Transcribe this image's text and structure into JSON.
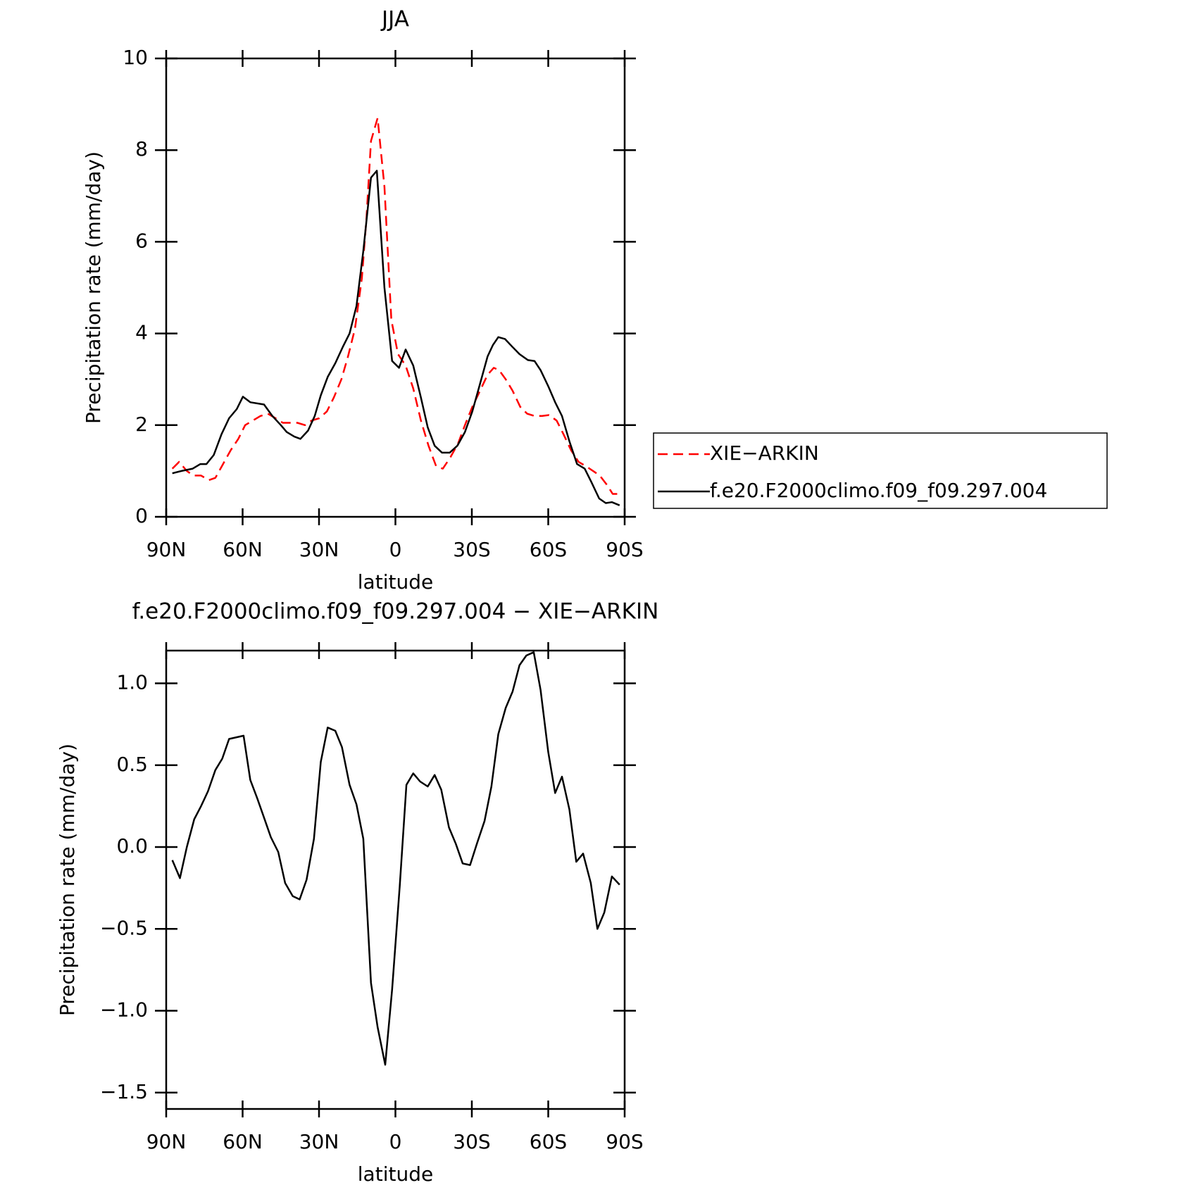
{
  "chart_data": [
    {
      "type": "line",
      "title": "JJA",
      "xlabel": "latitude",
      "ylabel": "Precipitation rate (mm/day)",
      "xlim": [
        90,
        -90
      ],
      "ylim": [
        0,
        10
      ],
      "xticks": [
        {
          "value": 90,
          "label": "90N"
        },
        {
          "value": 60,
          "label": "60N"
        },
        {
          "value": 30,
          "label": "30N"
        },
        0,
        {
          "value": -30,
          "label": "30S"
        },
        {
          "value": -60,
          "label": "60S"
        },
        {
          "value": -90,
          "label": "90S"
        }
      ],
      "yticks": [
        0,
        2,
        4,
        6,
        8,
        10
      ],
      "legend": "right",
      "series": [
        {
          "name": "XIE−ARKIN",
          "color": "#ff0000",
          "dashed": true,
          "x": [
            87.6,
            84.9,
            81.9,
            79.3,
            76.3,
            73.3,
            70.7,
            67.7,
            64.7,
            61.7,
            59,
            56,
            53,
            50.1,
            47.1,
            44.2,
            41.5,
            38.5,
            35.5,
            32.9,
            29.9,
            26.9,
            24.2,
            21.2,
            18.6,
            15.9,
            13.2,
            11.4,
            9.6,
            7,
            4.3,
            1.6,
            -1,
            -4,
            -7,
            -10,
            -13,
            -16,
            -18.6,
            -21.6,
            -24.6,
            -27.3,
            -30.2,
            -33.2,
            -36.2,
            -38.6,
            -40.7,
            -43.3,
            -46,
            -49,
            -51.7,
            -54.6,
            -57.6,
            -60.3,
            -63.3,
            -66,
            -69,
            -71.9,
            -74.9,
            -77.6,
            -80.2,
            -83,
            -85.3,
            -88
          ],
          "values": [
            1.05,
            1.2,
            1.0,
            0.9,
            0.9,
            0.8,
            0.85,
            1.15,
            1.45,
            1.7,
            2.0,
            2.1,
            2.2,
            2.25,
            2.15,
            2.05,
            2.05,
            2.05,
            2.0,
            2.1,
            2.15,
            2.3,
            2.6,
            3.0,
            3.5,
            4.1,
            5.2,
            6.5,
            8.2,
            8.7,
            7.2,
            4.3,
            3.55,
            3.3,
            2.8,
            2.1,
            1.55,
            1.1,
            1.05,
            1.3,
            1.6,
            2.0,
            2.4,
            2.75,
            3.1,
            3.25,
            3.2,
            3.0,
            2.75,
            2.4,
            2.25,
            2.2,
            2.2,
            2.22,
            2.1,
            1.8,
            1.45,
            1.2,
            1.1,
            1.0,
            0.9,
            0.7,
            0.5,
            0.5
          ]
        },
        {
          "name": "f.e20.F2000climo.f09_f09.297.004",
          "color": "#000000",
          "dashed": false,
          "x": [
            87.6,
            84,
            79.6,
            76.6,
            74.2,
            71.3,
            68.3,
            65.3,
            62.3,
            59.9,
            57,
            51.6,
            48.3,
            45,
            42.7,
            39.7,
            37.3,
            34.3,
            31.7,
            29.3,
            26.6,
            23.6,
            20.7,
            18,
            15.3,
            12.6,
            9.6,
            7.3,
            4.3,
            1.3,
            -1.4,
            -4,
            -7,
            -10,
            -12.7,
            -15.4,
            -18.3,
            -21.3,
            -24.3,
            -27.3,
            -30.2,
            -33.2,
            -36.2,
            -38.3,
            -40.4,
            -43,
            -45.7,
            -48.7,
            -52,
            -54.6,
            -57,
            -60,
            -62.7,
            -65.4,
            -68.3,
            -71.3,
            -74.3,
            -77,
            -80,
            -82.6,
            -85,
            -88
          ],
          "values": [
            0.95,
            1.0,
            1.05,
            1.15,
            1.15,
            1.35,
            1.8,
            2.15,
            2.35,
            2.62,
            2.5,
            2.45,
            2.2,
            2.0,
            1.85,
            1.75,
            1.7,
            1.88,
            2.2,
            2.65,
            3.05,
            3.35,
            3.7,
            4.0,
            4.6,
            5.8,
            7.4,
            7.55,
            5.0,
            3.4,
            3.25,
            3.65,
            3.3,
            2.6,
            1.95,
            1.55,
            1.4,
            1.4,
            1.55,
            1.85,
            2.3,
            2.9,
            3.5,
            3.75,
            3.92,
            3.88,
            3.72,
            3.55,
            3.42,
            3.4,
            3.2,
            2.85,
            2.5,
            2.2,
            1.65,
            1.15,
            1.05,
            0.75,
            0.4,
            0.3,
            0.32,
            0.25
          ]
        }
      ]
    },
    {
      "type": "line",
      "title": "f.e20.F2000climo.f09_f09.297.004 − XIE−ARKIN",
      "xlabel": "latitude",
      "ylabel": "Precipitation rate (mm/day)",
      "xlim": [
        90,
        -90
      ],
      "ylim": [
        -1.6,
        1.2
      ],
      "xticks": [
        {
          "value": 90,
          "label": "90N"
        },
        {
          "value": 60,
          "label": "60N"
        },
        {
          "value": 30,
          "label": "30N"
        },
        0,
        {
          "value": -30,
          "label": "30S"
        },
        {
          "value": -60,
          "label": "60S"
        },
        {
          "value": -90,
          "label": "90S"
        }
      ],
      "yticks": [
        {
          "value": -1.5,
          "label": "−1.5"
        },
        {
          "value": -1.0,
          "label": "−1.0"
        },
        {
          "value": -0.5,
          "label": "−0.5"
        },
        {
          "value": 0.0,
          "label": "0.0"
        },
        0.5,
        {
          "value": 1.0,
          "label": "1.0"
        }
      ],
      "series": [
        {
          "color": "#000000",
          "dashed": false,
          "x": [
            87.6,
            84.6,
            81.9,
            79,
            76.3,
            73.6,
            70.7,
            68,
            65.3,
            59.6,
            57,
            54.3,
            51.6,
            48.9,
            46,
            43.3,
            40.3,
            37.6,
            34.9,
            32,
            29.3,
            26.6,
            23.6,
            21,
            18,
            15.3,
            12.6,
            9.6,
            7,
            4,
            1.3,
            -1.7,
            -4.3,
            -7,
            -9.7,
            -12.7,
            -15.4,
            -18,
            -21,
            -23.7,
            -26.4,
            -29.3,
            -32,
            -35,
            -37.7,
            -40.4,
            -43.3,
            -46,
            -48.7,
            -51.4,
            -54.3,
            -57,
            -60,
            -62.7,
            -65.4,
            -68.3,
            -71,
            -73.7,
            -76.7,
            -79.3,
            -82,
            -85,
            -88
          ],
          "values": [
            -0.08,
            -0.19,
            0.0,
            0.17,
            0.25,
            0.34,
            0.47,
            0.54,
            0.66,
            0.68,
            0.41,
            0.3,
            0.18,
            0.06,
            -0.03,
            -0.22,
            -0.3,
            -0.32,
            -0.2,
            0.05,
            0.52,
            0.73,
            0.71,
            0.61,
            0.38,
            0.26,
            0.05,
            -0.83,
            -1.1,
            -1.33,
            -0.87,
            -0.24,
            0.38,
            0.45,
            0.4,
            0.37,
            0.44,
            0.35,
            0.12,
            0.02,
            -0.1,
            -0.11,
            0.02,
            0.16,
            0.37,
            0.69,
            0.85,
            0.95,
            1.11,
            1.17,
            1.19,
            0.96,
            0.58,
            0.33,
            0.43,
            0.23,
            -0.09,
            -0.04,
            -0.22,
            -0.5,
            -0.4,
            -0.18,
            -0.23
          ]
        }
      ]
    }
  ]
}
